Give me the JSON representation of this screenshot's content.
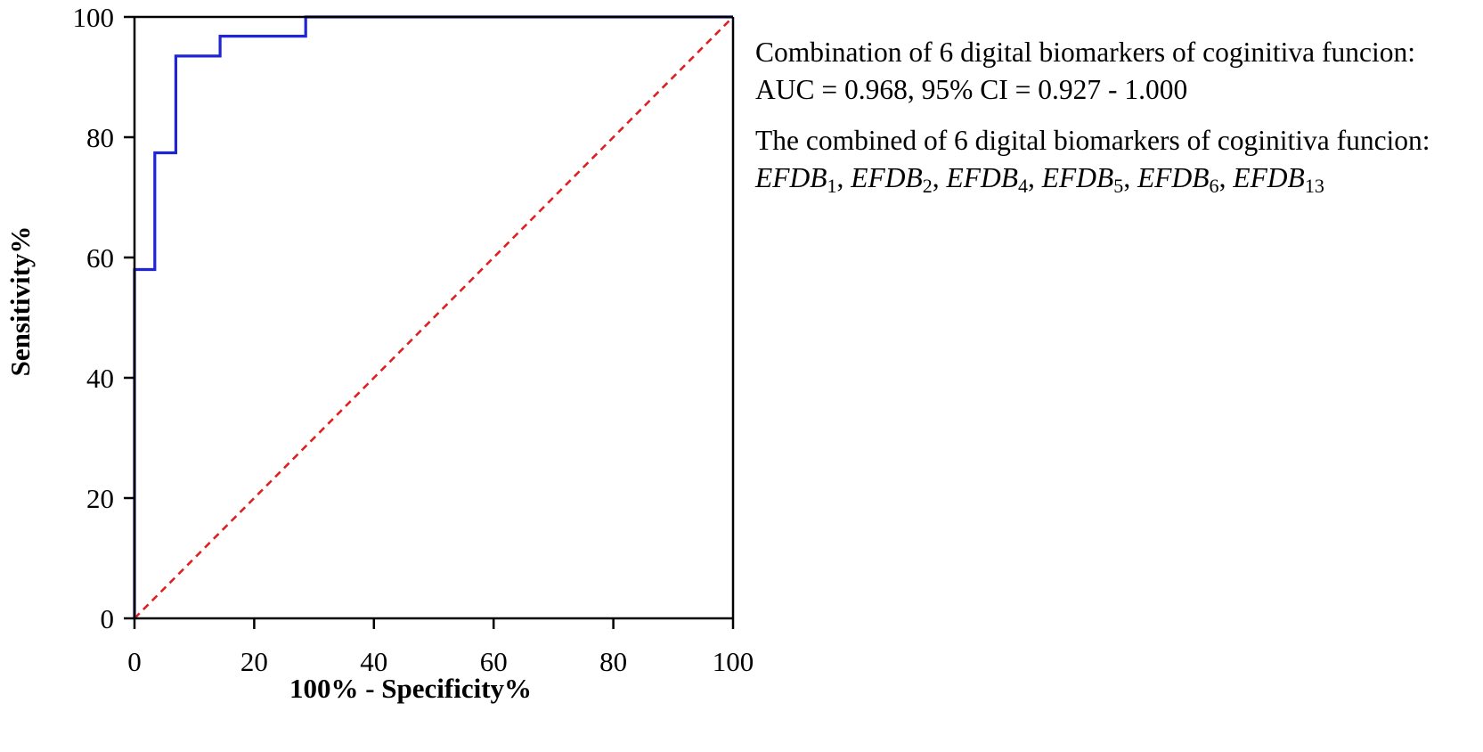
{
  "chart_data": {
    "type": "line",
    "xlabel": "100% - Specificity%",
    "ylabel": "Sensitivity%",
    "xlim": [
      0,
      100
    ],
    "ylim": [
      0,
      100
    ],
    "xticks": [
      "0",
      "20",
      "40",
      "60",
      "80",
      "100"
    ],
    "yticks": [
      "0",
      "20",
      "40",
      "60",
      "80",
      "100"
    ],
    "grid": false,
    "series": [
      {
        "color": "#1f24d6",
        "style": "solid",
        "x": [
          0,
          0,
          3.4,
          3.4,
          6.9,
          6.9,
          14.3,
          14.3,
          28.6,
          28.6,
          100
        ],
        "y": [
          0,
          58,
          58,
          77.4,
          77.4,
          93.5,
          93.5,
          96.8,
          96.8,
          100,
          100
        ]
      },
      {
        "color": "#e02020",
        "style": "dashed",
        "x": [
          0,
          100
        ],
        "y": [
          0,
          100
        ]
      }
    ],
    "annotations": [
      "Combination of 6 digital biomarkers of coginitiva funcion:",
      "AUC = 0.968, 95% CI = 0.927 - 1.000",
      "The combined of 6 digital biomarkers of coginitiva funcion:"
    ],
    "biomarkers": [
      {
        "base": "EFDB",
        "sub": "1"
      },
      {
        "base": "EFDB",
        "sub": "2"
      },
      {
        "base": "EFDB",
        "sub": "4"
      },
      {
        "base": "EFDB",
        "sub": "5"
      },
      {
        "base": "EFDB",
        "sub": "6"
      },
      {
        "base": "EFDB",
        "sub": "13"
      }
    ]
  }
}
